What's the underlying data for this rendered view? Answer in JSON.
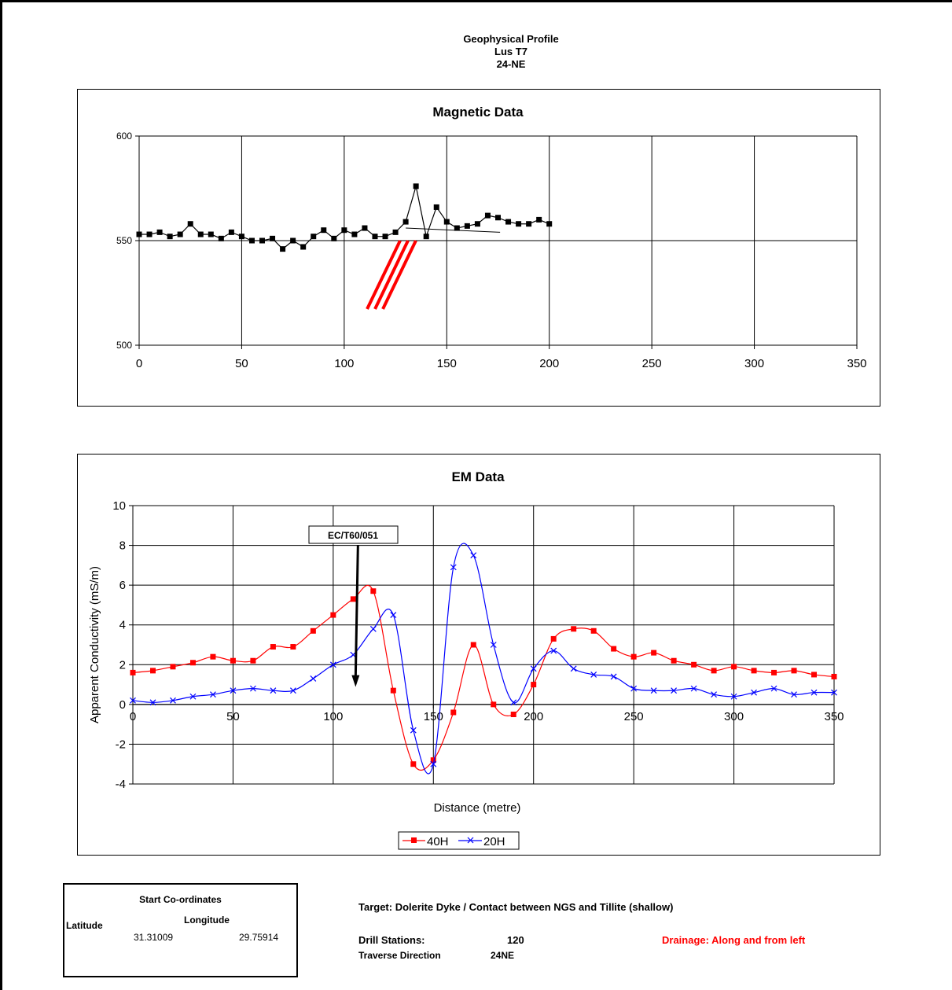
{
  "header": {
    "title": "Geophysical Profile",
    "line2": "Lus T7",
    "line3": "24-NE"
  },
  "chart_data": [
    {
      "type": "line",
      "title": "Magnetic Data",
      "xlim": [
        0,
        350
      ],
      "ylim": [
        500,
        600
      ],
      "xticks": [
        0,
        50,
        100,
        150,
        200,
        250,
        300,
        350
      ],
      "yticks": [
        500,
        550,
        600
      ],
      "grid": true,
      "series": [
        {
          "color": "#000000",
          "marker": "square",
          "x": [
            0,
            5,
            10,
            15,
            20,
            25,
            30,
            35,
            40,
            45,
            50,
            55,
            60,
            65,
            70,
            75,
            80,
            85,
            90,
            95,
            100,
            105,
            110,
            115,
            120,
            125,
            130,
            135,
            140,
            145,
            150,
            155,
            160,
            165,
            170,
            175,
            180,
            185,
            190,
            195,
            200
          ],
          "y": [
            553,
            553,
            554,
            552,
            553,
            558,
            553,
            553,
            551,
            554,
            552,
            550,
            550,
            551,
            546,
            550,
            547,
            552,
            555,
            551,
            555,
            553,
            556,
            552,
            552,
            554,
            559,
            576,
            552,
            566,
            559,
            556,
            557,
            558,
            562,
            561,
            559,
            558,
            558,
            560,
            558
          ]
        }
      ],
      "annotations": {
        "trend_line": {
          "x": [
            130,
            176
          ],
          "y": [
            556,
            554
          ]
        },
        "dyke_color": "#ff0000"
      }
    },
    {
      "type": "line",
      "title": "EM Data",
      "xlabel": "Distance (metre)",
      "ylabel": "Apparent Conductivity (mS/m)",
      "xlim": [
        0,
        350
      ],
      "ylim": [
        -4,
        10
      ],
      "xticks": [
        0,
        50,
        100,
        150,
        200,
        250,
        300,
        350
      ],
      "yticks": [
        -4,
        -2,
        0,
        2,
        4,
        6,
        8,
        10
      ],
      "grid": true,
      "legend_position": "bottom",
      "series": [
        {
          "name": "40H",
          "color": "#ff0000",
          "marker": "square",
          "x": [
            0,
            10,
            20,
            30,
            40,
            50,
            60,
            70,
            80,
            90,
            100,
            110,
            120,
            130,
            140,
            150,
            160,
            170,
            180,
            190,
            200,
            210,
            220,
            230,
            240,
            250,
            260,
            270,
            280,
            290,
            300,
            310,
            320,
            330,
            340,
            350
          ],
          "y": [
            1.6,
            1.7,
            1.9,
            2.1,
            2.4,
            2.2,
            2.2,
            2.9,
            2.9,
            3.7,
            4.5,
            5.3,
            5.7,
            0.7,
            -3.0,
            -2.8,
            -0.4,
            3.0,
            0.0,
            -0.5,
            1.0,
            3.3,
            3.8,
            3.7,
            2.8,
            2.4,
            2.6,
            2.2,
            2.0,
            1.7,
            1.9,
            1.7,
            1.6,
            1.7,
            1.5,
            1.4
          ]
        },
        {
          "name": "20H",
          "color": "#0000ff",
          "marker": "x",
          "x": [
            0,
            10,
            20,
            30,
            40,
            50,
            60,
            70,
            80,
            90,
            100,
            110,
            120,
            130,
            140,
            150,
            160,
            170,
            180,
            190,
            200,
            210,
            220,
            230,
            240,
            250,
            260,
            270,
            280,
            290,
            300,
            310,
            320,
            330,
            340,
            350
          ],
          "y": [
            0.2,
            0.1,
            0.2,
            0.4,
            0.5,
            0.7,
            0.8,
            0.7,
            0.7,
            1.3,
            2.0,
            2.5,
            3.8,
            4.5,
            -1.3,
            -3.0,
            6.9,
            7.5,
            3.0,
            0.1,
            1.8,
            2.7,
            1.8,
            1.5,
            1.4,
            0.8,
            0.7,
            0.7,
            0.8,
            0.5,
            0.4,
            0.6,
            0.8,
            0.5,
            0.6,
            0.6
          ]
        }
      ],
      "annotations": {
        "callout": {
          "label": "EC/T60/051",
          "x": 110,
          "y_from": 8.0,
          "y_to": 1.0
        }
      }
    }
  ],
  "coordinates": {
    "title": "Start Co-ordinates",
    "latitude_label": "Latitude",
    "longitude_label": "Longitude",
    "latitude": "31.31009",
    "longitude": "29.75914"
  },
  "info": {
    "target": "Target: Dolerite Dyke / Contact between NGS and Tillite (shallow)",
    "drill_label": "Drill Stations:",
    "drill_value": "120",
    "traverse_label": "Traverse Direction",
    "traverse_value": "24NE",
    "drainage": "Drainage: Along and from left",
    "drainage_color": "#ff0000"
  }
}
